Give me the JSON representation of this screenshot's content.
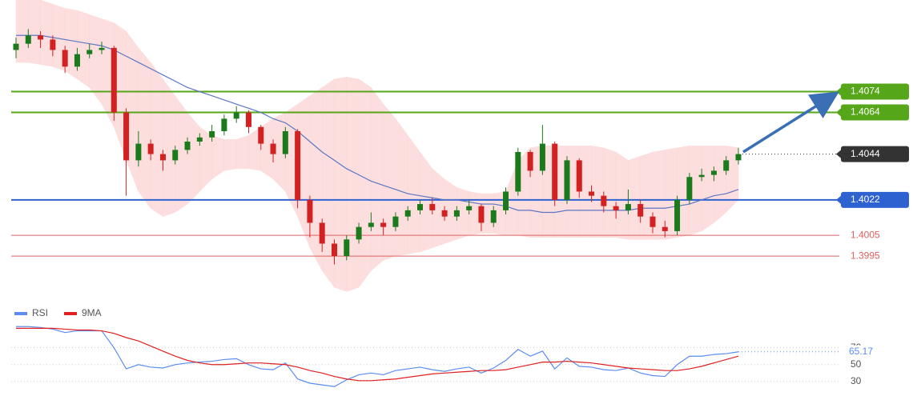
{
  "chart_data": [
    {
      "type": "candlestick",
      "series": [
        {
          "up_color": "#1b7a1b",
          "down_color": "#d32020",
          "open": [
            1.4094,
            1.4097,
            1.4101,
            1.4099,
            1.4094,
            1.4086,
            1.4092,
            1.4094,
            1.4095,
            1.4064,
            1.4041,
            1.4049,
            1.4044,
            1.4041,
            1.4046,
            1.405,
            1.4052,
            1.4055,
            1.4061,
            1.4064,
            1.4057,
            1.4049,
            1.4044,
            1.4055,
            1.4022,
            1.4011,
            1.4001,
            1.3995,
            1.4003,
            1.4009,
            1.4011,
            1.4009,
            1.4014,
            1.4017,
            1.402,
            1.4017,
            1.4014,
            1.4017,
            1.4019,
            1.4011,
            1.4017,
            1.4026,
            1.4045,
            1.4036,
            1.4049,
            1.4022,
            1.4041,
            1.4026,
            1.4024,
            1.4019,
            1.4017,
            1.402,
            1.4014,
            1.4009,
            1.4007,
            1.4022,
            1.4033,
            1.4034,
            1.4036,
            1.4041
          ],
          "high": [
            1.41,
            1.4104,
            1.4103,
            1.4101,
            1.4096,
            1.4095,
            1.4097,
            1.4098,
            1.4096,
            1.4066,
            1.4055,
            1.4051,
            1.4046,
            1.4048,
            1.4052,
            1.4054,
            1.4058,
            1.4063,
            1.4067,
            1.4065,
            1.4058,
            1.4051,
            1.4057,
            1.4056,
            1.4024,
            1.4013,
            1.4003,
            1.4005,
            1.4011,
            1.4016,
            1.4013,
            1.4016,
            1.4019,
            1.4022,
            1.4023,
            1.4019,
            1.4019,
            1.4022,
            1.402,
            1.4019,
            1.4028,
            1.4047,
            1.4046,
            1.4058,
            1.405,
            1.4043,
            1.4042,
            1.4029,
            1.4026,
            1.4021,
            1.4027,
            1.4022,
            1.4016,
            1.4012,
            1.4024,
            1.4035,
            1.4037,
            1.4038,
            1.4043,
            1.4047
          ],
          "low": [
            1.409,
            1.4095,
            1.4095,
            1.4091,
            1.4083,
            1.4084,
            1.409,
            1.4092,
            1.406,
            1.4024,
            1.4038,
            1.4041,
            1.4036,
            1.4039,
            1.4044,
            1.4048,
            1.405,
            1.4053,
            1.4059,
            1.4054,
            1.4046,
            1.404,
            1.4042,
            1.4018,
            1.4004,
            1.3997,
            1.3991,
            1.3993,
            1.4001,
            1.4007,
            1.4005,
            1.4007,
            1.4012,
            1.4015,
            1.4015,
            1.4012,
            1.4012,
            1.4015,
            1.4007,
            1.4009,
            1.4015,
            1.4024,
            1.4033,
            1.4034,
            1.4019,
            1.402,
            1.4023,
            1.4021,
            1.4016,
            1.4013,
            1.4015,
            1.4011,
            1.4006,
            1.4004,
            1.4005,
            1.402,
            1.4031,
            1.4031,
            1.4034,
            1.4039
          ],
          "close": [
            1.4097,
            1.4101,
            1.4099,
            1.4094,
            1.4086,
            1.4092,
            1.4094,
            1.4095,
            1.4064,
            1.4041,
            1.4049,
            1.4044,
            1.4041,
            1.4046,
            1.405,
            1.4052,
            1.4055,
            1.4061,
            1.4064,
            1.4057,
            1.4049,
            1.4044,
            1.4055,
            1.4022,
            1.4011,
            1.4001,
            1.3995,
            1.4003,
            1.4009,
            1.4011,
            1.4009,
            1.4014,
            1.4017,
            1.402,
            1.4017,
            1.4014,
            1.4017,
            1.4019,
            1.4011,
            1.4017,
            1.4026,
            1.4045,
            1.4036,
            1.4049,
            1.4022,
            1.4041,
            1.4026,
            1.4024,
            1.4019,
            1.4017,
            1.402,
            1.4014,
            1.4009,
            1.4007,
            1.4022,
            1.4033,
            1.4034,
            1.4036,
            1.4041,
            1.4044
          ]
        }
      ],
      "ma": {
        "color": "#5b77c2",
        "values": [
          1.4101,
          1.4101,
          1.4101,
          1.41,
          1.4099,
          1.4098,
          1.4097,
          1.4096,
          1.4094,
          1.4091,
          1.4088,
          1.4085,
          1.4082,
          1.4079,
          1.4076,
          1.4074,
          1.4072,
          1.407,
          1.4068,
          1.4066,
          1.4064,
          1.4061,
          1.4059,
          1.4055,
          1.405,
          1.4045,
          1.4041,
          1.4037,
          1.4034,
          1.4031,
          1.4029,
          1.4027,
          1.4025,
          1.4024,
          1.4023,
          1.4022,
          1.4022,
          1.4021,
          1.402,
          1.402,
          1.4019,
          1.4017,
          1.4017,
          1.4016,
          1.4016,
          1.4017,
          1.4017,
          1.4017,
          1.4017,
          1.4017,
          1.4017,
          1.4018,
          1.4018,
          1.4018,
          1.4019,
          1.402,
          1.4022,
          1.4024,
          1.4025,
          1.4027
        ]
      },
      "band": {
        "color": "#fbd3d3",
        "upper": [
          1.4118,
          1.4118,
          1.4118,
          1.4116,
          1.4114,
          1.4113,
          1.4111,
          1.4109,
          1.4107,
          1.4103,
          1.4095,
          1.4088,
          1.408,
          1.4072,
          1.4064,
          1.4057,
          1.4053,
          1.4051,
          1.4051,
          1.4053,
          1.4057,
          1.4061,
          1.4064,
          1.4068,
          1.4072,
          1.4076,
          1.408,
          1.4081,
          1.408,
          1.4076,
          1.4068,
          1.4061,
          1.4053,
          1.4045,
          1.4037,
          1.4032,
          1.4028,
          1.4026,
          1.4025,
          1.4025,
          1.4026,
          1.4041,
          1.4047,
          1.4048,
          1.4048,
          1.4048,
          1.4048,
          1.4048,
          1.4047,
          1.4045,
          1.4041,
          1.4043,
          1.4045,
          1.4046,
          1.4047,
          1.4048,
          1.4048,
          1.4048,
          1.4048,
          1.4047
        ],
        "lower": [
          1.4088,
          1.4088,
          1.4087,
          1.4086,
          1.4084,
          1.408,
          1.4076,
          1.4068,
          1.4057,
          1.4041,
          1.4026,
          1.4018,
          1.4014,
          1.4016,
          1.402,
          1.4026,
          1.4032,
          1.4036,
          1.4037,
          1.4037,
          1.4036,
          1.4032,
          1.4026,
          1.4014,
          1.3999,
          1.3988,
          1.398,
          1.3978,
          1.398,
          1.3988,
          1.3993,
          1.3995,
          1.3996,
          1.3997,
          1.3999,
          1.4001,
          1.4003,
          1.4005,
          1.4006,
          1.4006,
          1.4005,
          1.4005,
          1.4004,
          1.4004,
          1.4004,
          1.4004,
          1.4004,
          1.4004,
          1.4004,
          1.4004,
          1.4003,
          1.4003,
          1.4003,
          1.4003,
          1.4004,
          1.4005,
          1.4007,
          1.4011,
          1.4016,
          1.4022
        ]
      },
      "levels": [
        {
          "value": 1.4074,
          "color": "#55a618",
          "style": "box"
        },
        {
          "value": 1.4064,
          "color": "#55a618",
          "style": "box"
        },
        {
          "value": 1.4022,
          "color": "#2e62d0",
          "style": "box"
        },
        {
          "value": 1.4005,
          "color": "#e06060",
          "style": "text"
        },
        {
          "value": 1.3995,
          "color": "#e06060",
          "style": "text"
        }
      ],
      "current_color": "#333333",
      "ylim": [
        1.3972,
        1.4118
      ]
    },
    {
      "type": "line",
      "series": [
        {
          "name": "RSI",
          "color": "#5b8def",
          "values": [
            95,
            95,
            94,
            92,
            88,
            90,
            90,
            90,
            70,
            45,
            50,
            47,
            46,
            50,
            52,
            53,
            54,
            56,
            57,
            50,
            45,
            44,
            52,
            33,
            28,
            26,
            24,
            32,
            38,
            40,
            38,
            43,
            45,
            47,
            44,
            42,
            45,
            47,
            40,
            46,
            55,
            68,
            60,
            66,
            45,
            58,
            48,
            47,
            44,
            43,
            46,
            40,
            37,
            36,
            50,
            60,
            60,
            62,
            63,
            65.17
          ]
        },
        {
          "name": "9MA",
          "color": "#e02020",
          "values": [
            93,
            93,
            93,
            93,
            92,
            91,
            91,
            90,
            87,
            82,
            78,
            72,
            66,
            60,
            55,
            52,
            50,
            50,
            51,
            52,
            52,
            51,
            50,
            47,
            43,
            40,
            36,
            33,
            31,
            31,
            32,
            33,
            35,
            37,
            39,
            40,
            41,
            42,
            43,
            43,
            44,
            47,
            50,
            53,
            53,
            54,
            53,
            52,
            50,
            48,
            46,
            45,
            44,
            43,
            43,
            45,
            48,
            52,
            56,
            60
          ]
        }
      ],
      "ylim": [
        10,
        100
      ],
      "yticks": [
        30,
        50,
        70
      ]
    }
  ]
}
